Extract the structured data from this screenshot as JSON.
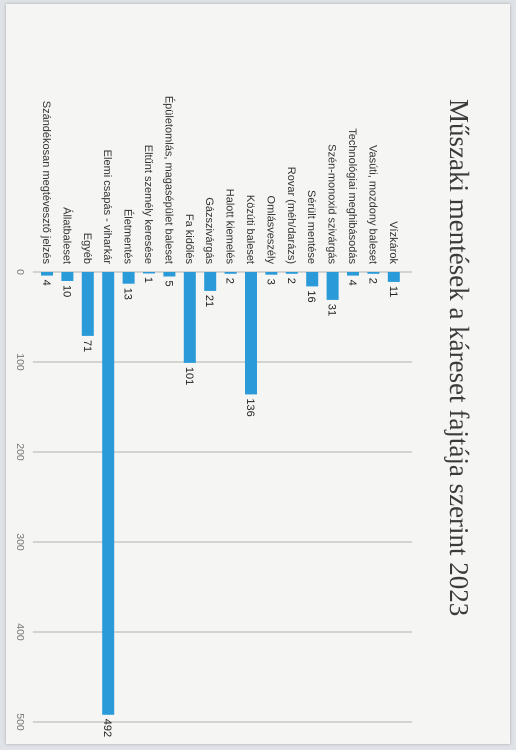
{
  "chart_data": {
    "type": "bar",
    "orientation": "horizontal",
    "title": "Műszaki mentések a káreset fajtája szerint 2023",
    "categories": [
      "Vízkárok",
      "Vasúti, mozdony baleset",
      "Technológiai meghibásodás",
      "Szén-monoxid szivárgás",
      "Sérült mentése",
      "Rovar (méh/darázs)",
      "Omlásveszély",
      "Közúti baleset",
      "Halott kiemelés",
      "Gázszivárgás",
      "Fa kidőlés",
      "Épületomlás, magasépület baleset",
      "Eltűnt személy keresése",
      "Életmentés",
      "Elemi csapás - viharkár",
      "Egyéb",
      "Állatbaleset",
      "Szándékosan megtévesztő jelzés"
    ],
    "values": [
      11,
      2,
      4,
      31,
      16,
      2,
      3,
      136,
      2,
      21,
      101,
      5,
      1,
      13,
      492,
      71,
      10,
      4
    ],
    "xlim": [
      0,
      500
    ],
    "xticks": [
      0,
      100,
      200,
      300,
      400,
      500
    ],
    "grid": true,
    "bar_color": "#2b9ad8"
  }
}
